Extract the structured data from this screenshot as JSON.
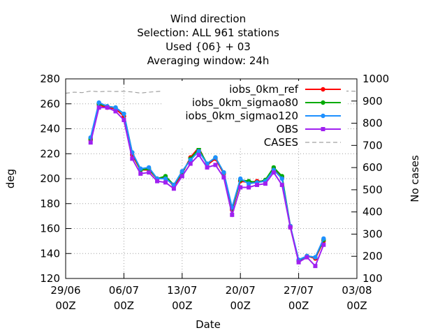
{
  "chart_data": {
    "type": "line",
    "title_lines": [
      "Wind direction",
      "Selection: ALL    961 stations",
      "Used {06} + 03",
      "Averaging window: 24h"
    ],
    "xlabel": "Date",
    "ylabel": "deg",
    "y2label": "No cases",
    "xlim": [
      0,
      35
    ],
    "ylim": [
      120,
      280
    ],
    "y2lim": [
      100,
      1000
    ],
    "x_ticks": [
      {
        "value": 0,
        "line1": "29/06",
        "line2": "00Z"
      },
      {
        "value": 7,
        "line1": "06/07",
        "line2": "00Z"
      },
      {
        "value": 14,
        "line1": "13/07",
        "line2": "00Z"
      },
      {
        "value": 21,
        "line1": "20/07",
        "line2": "00Z"
      },
      {
        "value": 28,
        "line1": "27/07",
        "line2": "00Z"
      },
      {
        "value": 35,
        "line1": "03/08",
        "line2": "00Z"
      }
    ],
    "y_ticks": [
      120,
      140,
      160,
      180,
      200,
      220,
      240,
      260,
      280
    ],
    "y2_ticks": [
      100,
      200,
      300,
      400,
      500,
      600,
      700,
      800,
      900,
      1000
    ],
    "grid": true,
    "legend_position": "top-right",
    "x": [
      3,
      4,
      5,
      6,
      7,
      8,
      9,
      10,
      11,
      12,
      13,
      14,
      15,
      16,
      17,
      18,
      19,
      20,
      21,
      22,
      23,
      24,
      25,
      26,
      27,
      28,
      29,
      30,
      31
    ],
    "series": [
      {
        "name": "iobs_0km_ref",
        "color": "#ff0000",
        "marker": "circle",
        "values": [
          231,
          259,
          257,
          256,
          250,
          219,
          207,
          207,
          200,
          201,
          194,
          204,
          217,
          225,
          211,
          216,
          204,
          175,
          198,
          197,
          198,
          198,
          208,
          201,
          161,
          134,
          138,
          136,
          150
        ]
      },
      {
        "name": "iobs_0km_sigmao80",
        "color": "#00aa00",
        "marker": "circle",
        "values": [
          232,
          260,
          258,
          257,
          252,
          221,
          207,
          208,
          200,
          202,
          195,
          205,
          216,
          224,
          212,
          217,
          205,
          176,
          199,
          198,
          197,
          199,
          209,
          202,
          162,
          134,
          138,
          137,
          151
        ]
      },
      {
        "name": "iobs_0km_sigmao120",
        "color": "#1e90ff",
        "marker": "circle",
        "values": [
          233,
          261,
          258,
          257,
          252,
          221,
          208,
          209,
          200,
          200,
          195,
          206,
          215,
          222,
          212,
          217,
          205,
          177,
          200,
          196,
          197,
          198,
          207,
          200,
          162,
          135,
          138,
          137,
          152
        ]
      },
      {
        "name": "OBS",
        "color": "#a020f0",
        "marker": "square",
        "values": [
          229,
          257,
          257,
          254,
          247,
          216,
          204,
          205,
          198,
          197,
          192,
          202,
          212,
          219,
          209,
          211,
          201,
          171,
          193,
          193,
          195,
          196,
          205,
          195,
          161,
          133,
          137,
          130,
          147
        ]
      }
    ],
    "cases": {
      "name": "CASES",
      "color": "#a0a0a0",
      "axis": "right",
      "x": [
        0,
        1,
        2,
        3,
        4,
        5,
        6,
        7,
        8,
        9,
        10,
        11,
        12,
        13,
        14,
        15,
        16,
        17,
        18,
        19,
        20,
        21,
        22,
        23,
        24,
        25,
        26,
        27,
        28,
        29,
        30,
        31,
        32,
        33,
        34,
        35
      ],
      "values": [
        935,
        940,
        938,
        945,
        942,
        944,
        943,
        944,
        941,
        936,
        940,
        943,
        945,
        944,
        946,
        944,
        945,
        943,
        946,
        944,
        945,
        944,
        946,
        944,
        945,
        946,
        944,
        945,
        944,
        945,
        946,
        944,
        945,
        944,
        945,
        944
      ]
    }
  }
}
